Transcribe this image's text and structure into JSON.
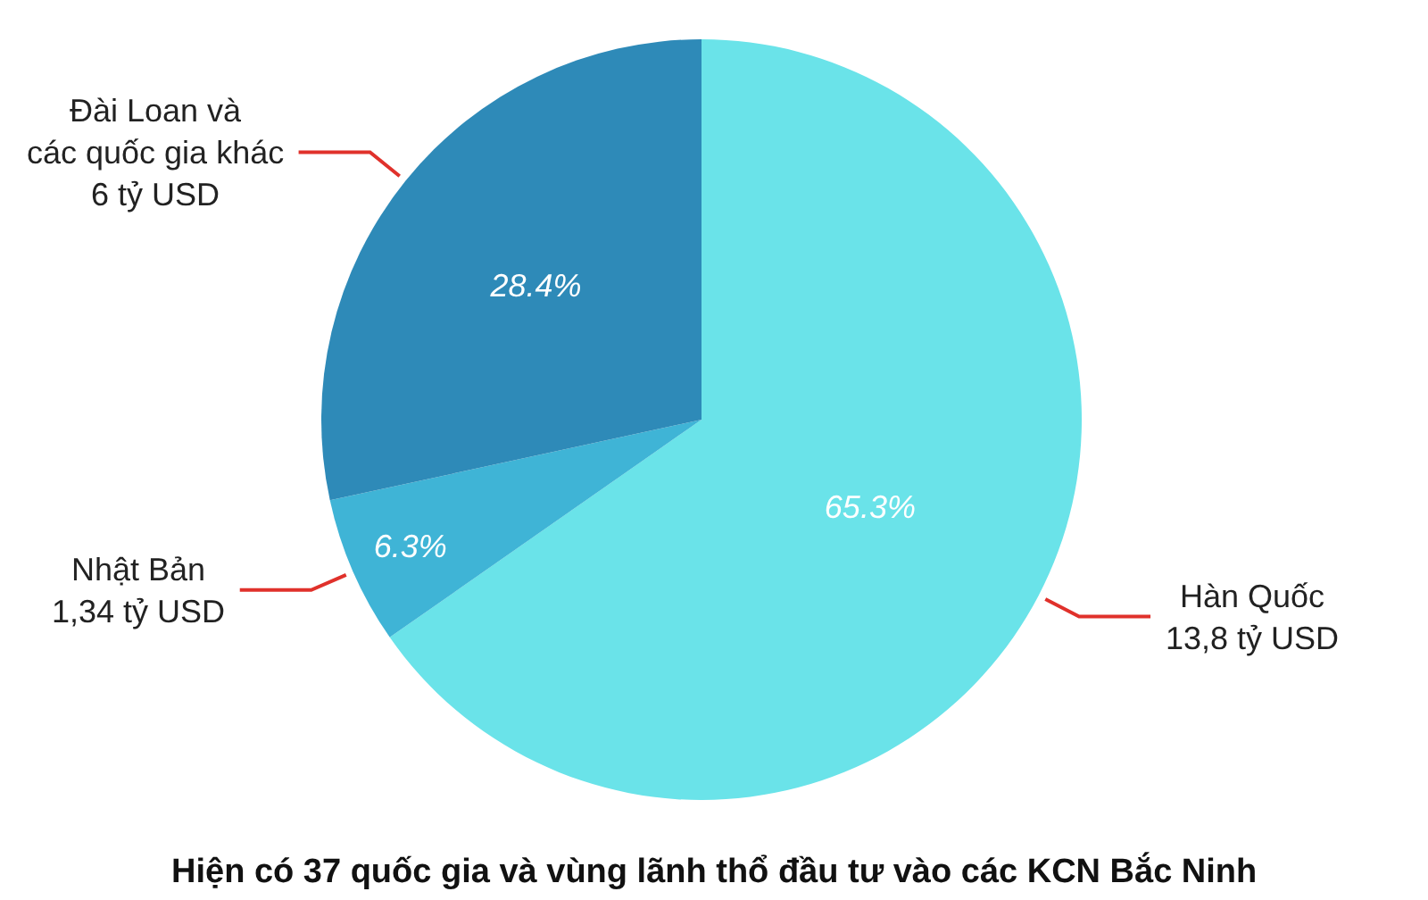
{
  "chart_data": {
    "type": "pie",
    "title": "Hiện có 37 quốc gia và vùng lãnh thổ đầu tư vào các KCN Bắc Ninh",
    "categories": [
      "Hàn Quốc\n13,8 tỷ USD",
      "Nhật Bản\n1,34 tỷ USD",
      "Đài Loan và\ncác quốc gia khác\n6 tỷ USD"
    ],
    "values": [
      65.3,
      6.3,
      28.4
    ],
    "value_labels": [
      "65.3%",
      "6.3%",
      "28.4%"
    ],
    "colors": [
      "#6ae3e9",
      "#3fb4d6",
      "#2e8ab8"
    ],
    "legend": false
  }
}
